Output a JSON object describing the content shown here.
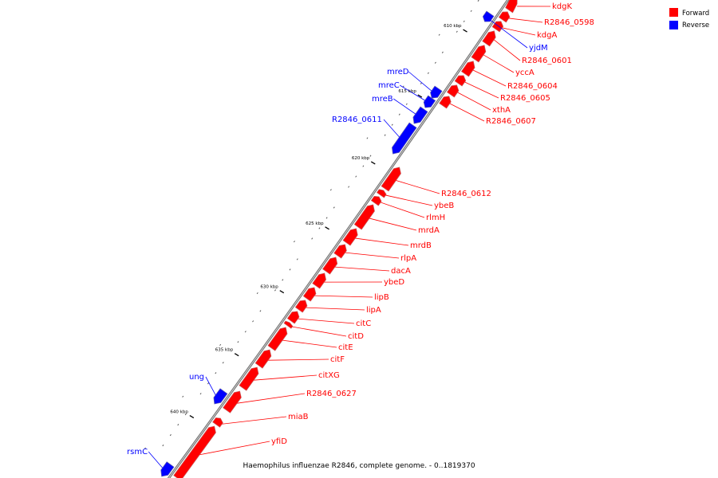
{
  "legend": {
    "forward_label": "Forward",
    "reverse_label": "Reverse",
    "forward_color": "#ff0000",
    "reverse_color": "#0000ff"
  },
  "caption": "Haemophilus influenzae R2846, complete genome. - 0..1819370",
  "kbp_ticks": [
    "610 kbp",
    "615 kbp",
    "620 kbp",
    "625 kbp",
    "630 kbp",
    "635 kbp",
    "640 kbp"
  ],
  "forward_genes": [
    "kdgK",
    "R2846_0598",
    "kdgA",
    "R2846_0601",
    "yccA",
    "R2846_0604",
    "R2846_0605",
    "xthA",
    "R2846_0607",
    "R2846_0612",
    "ybeB",
    "rlmH",
    "mrdA",
    "mrdB",
    "rlpA",
    "dacA",
    "ybeD",
    "lipB",
    "lipA",
    "citC",
    "citD",
    "citE",
    "citF",
    "citXG",
    "R2846_0627",
    "miaB",
    "yfiD"
  ],
  "reverse_genes": [
    "yjdM",
    "mreD",
    "mreC",
    "mreB",
    "R2846_0611",
    "ung",
    "rsmC"
  ]
}
